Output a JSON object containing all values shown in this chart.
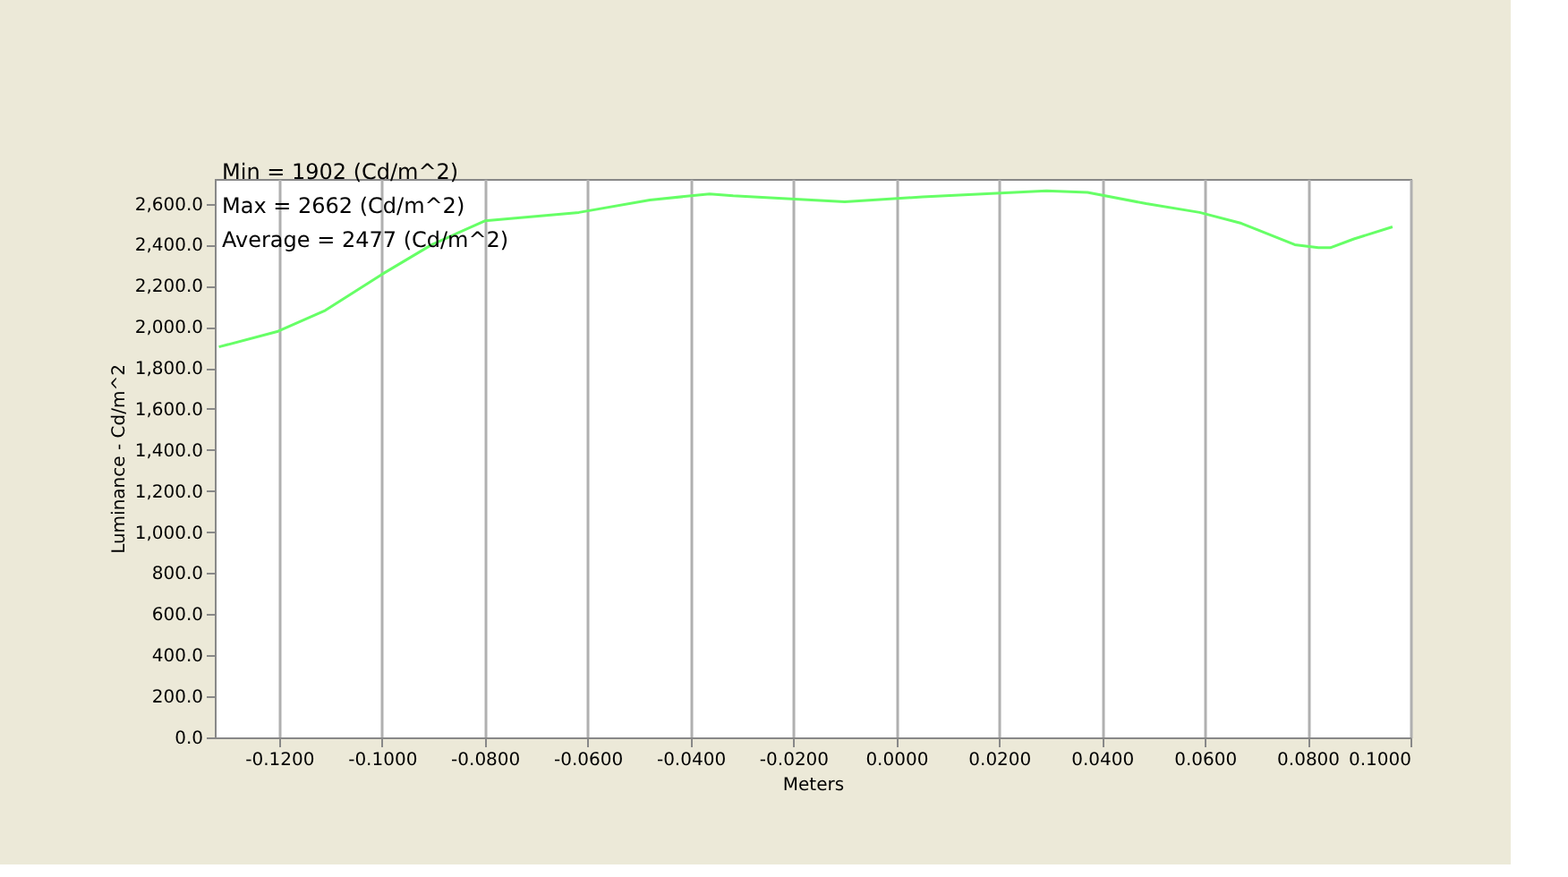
{
  "chart_data": {
    "type": "line",
    "xlabel": "Meters",
    "ylabel": "Luminance - Cd/m^2",
    "annotations": [
      "Min = 1902 (Cd/m^2)",
      "Max = 2662 (Cd/m^2)",
      "Average = 2477 (Cd/m^2)"
    ],
    "series": [
      {
        "color": "#66ff66",
        "x": [
          -0.1317,
          -0.1202,
          -0.111,
          -0.1001,
          -0.0903,
          -0.08,
          -0.0617,
          -0.0479,
          -0.0363,
          -0.0317,
          -0.01,
          0.0051,
          0.0292,
          0.0372,
          0.0486,
          0.059,
          0.0671,
          0.0775,
          0.0821,
          0.0844,
          0.089,
          0.0965
        ],
        "values": [
          1902,
          1978,
          2080,
          2254,
          2400,
          2516,
          2557,
          2618,
          2647,
          2638,
          2609,
          2633,
          2662,
          2655,
          2600,
          2557,
          2504,
          2400,
          2385,
          2385,
          2428,
          2487
        ]
      }
    ],
    "xlim": [
      -0.1325,
      0.1
    ],
    "xticks": [
      {
        "value": -0.12,
        "label": "-0.1200"
      },
      {
        "value": -0.1,
        "label": "-0.1000"
      },
      {
        "value": -0.08,
        "label": "-0.0800"
      },
      {
        "value": -0.06,
        "label": "-0.0600"
      },
      {
        "value": -0.04,
        "label": "-0.0400"
      },
      {
        "value": -0.02,
        "label": "-0.0200"
      },
      {
        "value": 0,
        "label": "0.0000"
      },
      {
        "value": 0.02,
        "label": "0.0200"
      },
      {
        "value": 0.04,
        "label": "0.0400"
      },
      {
        "value": 0.06,
        "label": "0.0600"
      },
      {
        "value": 0.08,
        "label": "0.0800"
      },
      {
        "value": 0.1,
        "label": "0.1000"
      }
    ],
    "ylim": [
      0,
      2720
    ],
    "yticks": [
      {
        "value": 0,
        "label": "0.0"
      },
      {
        "value": 200,
        "label": "200.0"
      },
      {
        "value": 400,
        "label": "400.0"
      },
      {
        "value": 600,
        "label": "600.0"
      },
      {
        "value": 800,
        "label": "800.0"
      },
      {
        "value": 1000,
        "label": "1,000.0"
      },
      {
        "value": 1200,
        "label": "1,200.0"
      },
      {
        "value": 1400,
        "label": "1,400.0"
      },
      {
        "value": 1600,
        "label": "1,600.0"
      },
      {
        "value": 1800,
        "label": "1,800.0"
      },
      {
        "value": 2000,
        "label": "2,000.0"
      },
      {
        "value": 2200,
        "label": "2,200.0"
      },
      {
        "value": 2400,
        "label": "2,400.0"
      },
      {
        "value": 2600,
        "label": "2,600.0"
      }
    ],
    "grid": "x",
    "marker": "none",
    "line_style": "solid"
  }
}
